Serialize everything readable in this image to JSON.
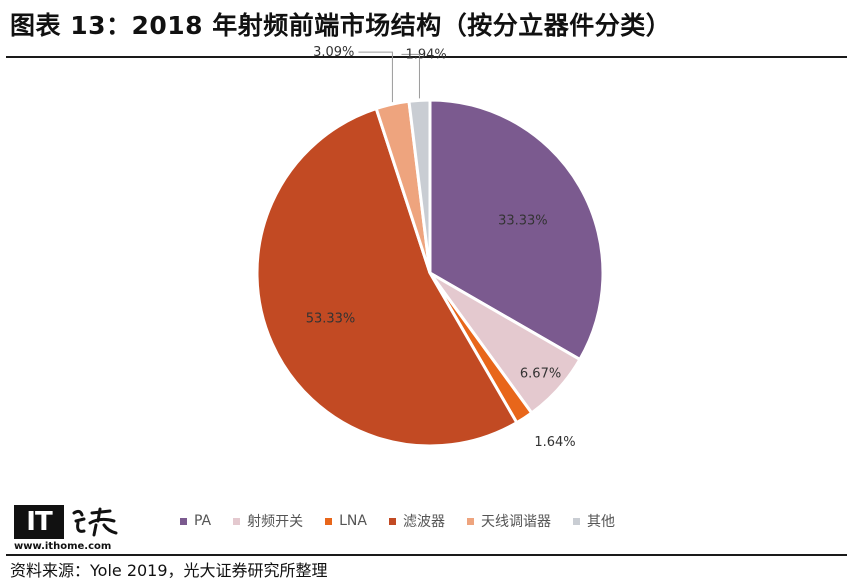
{
  "title": "图表 13：2018 年射频前端市场结构（按分立器件分类）",
  "source": "资料来源：Yole 2019，光大证券研究所整理",
  "watermark": {
    "logo_text": "IT",
    "url": "www.ithome.com"
  },
  "chart_data": {
    "type": "pie",
    "title": "",
    "start_angle_deg": 0,
    "direction": "clockwise",
    "slices": [
      {
        "name": "PA",
        "value": 33.33,
        "label": "33.33%",
        "color": "#7b5a8f"
      },
      {
        "name": "射频开关",
        "value": 6.67,
        "label": "6.67%",
        "color": "#e4c9cf"
      },
      {
        "name": "LNA",
        "value": 1.64,
        "label": "1.64%",
        "color": "#e8661a"
      },
      {
        "name": "滤波器",
        "value": 53.33,
        "label": "53.33%",
        "color": "#c24a23"
      },
      {
        "name": "天线调谐器",
        "value": 3.09,
        "label": "3.09%",
        "color": "#eea47e"
      },
      {
        "name": "其他",
        "value": 1.94,
        "label": "1.94%",
        "color": "#c9cdd3"
      }
    ],
    "legend": {
      "position": "bottom"
    }
  }
}
